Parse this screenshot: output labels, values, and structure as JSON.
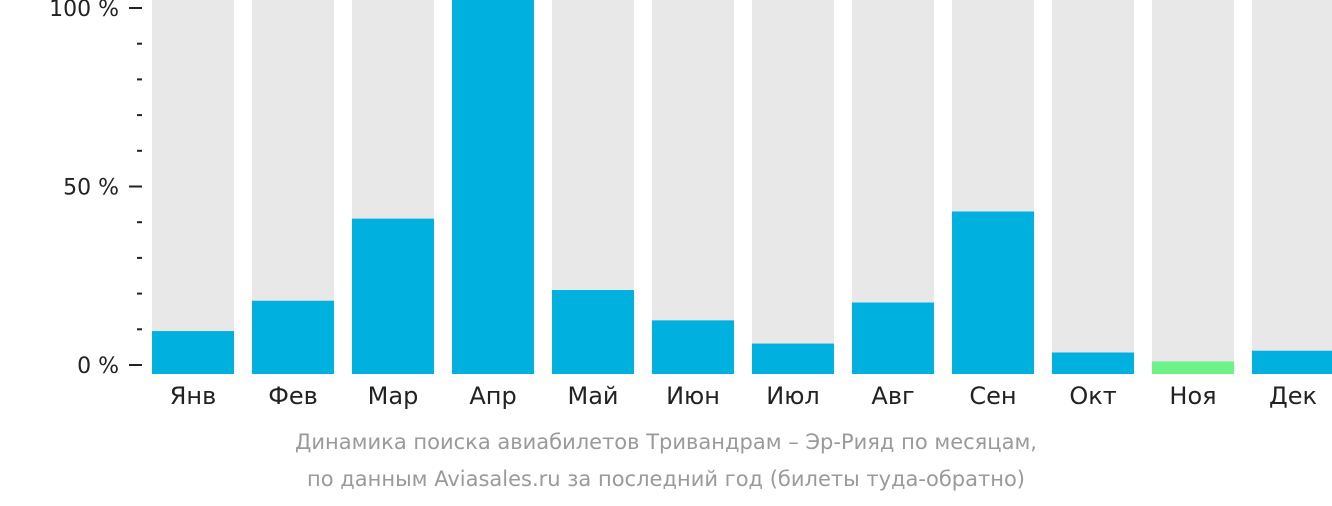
{
  "chart_data": {
    "type": "bar",
    "categories": [
      "Янв",
      "Фев",
      "Мар",
      "Апр",
      "Май",
      "Июн",
      "Июл",
      "Авг",
      "Сен",
      "Окт",
      "Ноя",
      "Дек"
    ],
    "values": [
      9.5,
      18,
      41,
      100,
      21,
      12.5,
      6,
      17.5,
      43,
      3.5,
      1,
      4
    ],
    "ylim": [
      0,
      100
    ],
    "y_tick_labels": [
      "100 %",
      "50 %",
      "0 %"
    ],
    "title": "",
    "xlabel": "",
    "ylabel": "",
    "grid": false,
    "legend": "none",
    "colors": {
      "bar": "#00b0de",
      "bar_highlight": "#6ef28a",
      "bar_background": "#e8e8e8",
      "axis": "#222222"
    },
    "highlight_category": "Ноя",
    "caption_lines": [
      "Динамика поиска авиабилетов Тривандрам – Эр-Рияд по месяцам,",
      "по данным Aviasales.ru за последний год (билеты туда-обратно)"
    ]
  }
}
